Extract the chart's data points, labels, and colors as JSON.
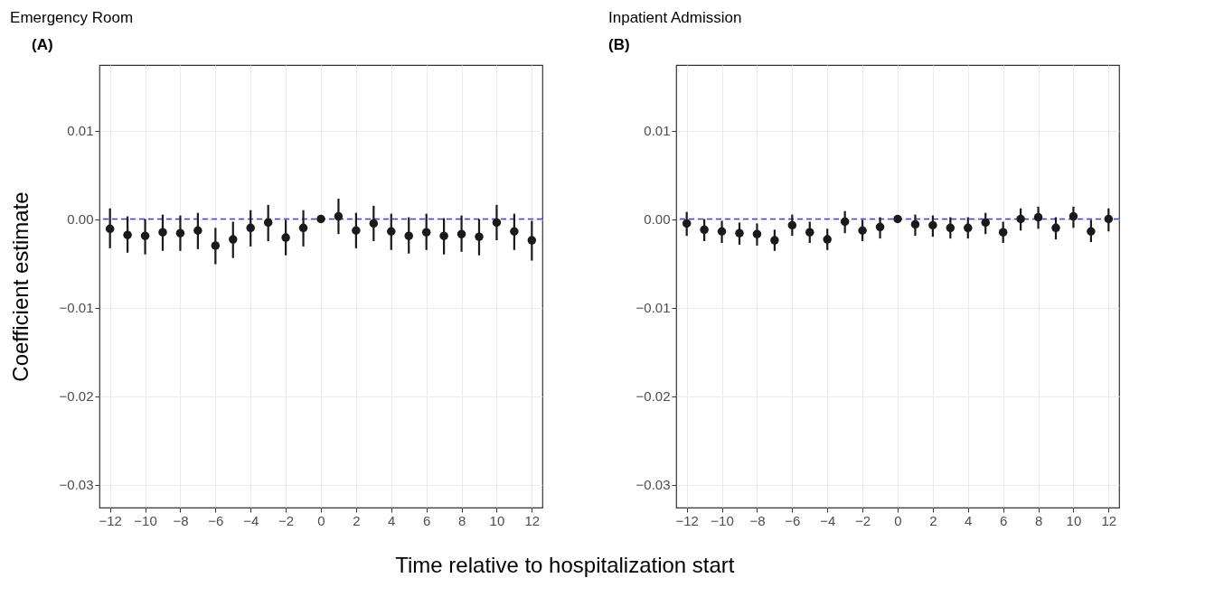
{
  "chart_data": [
    {
      "type": "scatter",
      "title": "Emergency Room",
      "ylabel": "Coefficient estimate",
      "xlabel": "Time relative to hospitalization start",
      "annotations": [
        "(A)"
      ],
      "x": [
        -12,
        -11,
        -10,
        -9,
        -8,
        -7,
        -6,
        -5,
        -4,
        -3,
        -2,
        -1,
        0,
        1,
        2,
        3,
        4,
        5,
        6,
        7,
        8,
        9,
        10,
        11,
        12
      ],
      "series": [
        {
          "color": "#1a1a1a",
          "values": [
            -0.0011,
            -0.0018,
            -0.0019,
            -0.0015,
            -0.0016,
            -0.0013,
            -0.003,
            -0.0023,
            -0.001,
            -0.0004,
            -0.0021,
            -0.001,
            0.0,
            0.0003,
            -0.0013,
            -0.0005,
            -0.0014,
            -0.0019,
            -0.0015,
            -0.0019,
            -0.0017,
            -0.002,
            -0.0004,
            -0.0014,
            -0.0024
          ],
          "errors": [
            [
              -0.0033,
              0.0012
            ],
            [
              -0.0038,
              0.0003
            ],
            [
              -0.004,
              0.0
            ],
            [
              -0.0036,
              0.0005
            ],
            [
              -0.0036,
              0.0004
            ],
            [
              -0.0034,
              0.0007
            ],
            [
              -0.0051,
              -0.001
            ],
            [
              -0.0044,
              -0.0003
            ],
            [
              -0.0031,
              0.001
            ],
            [
              -0.0025,
              0.0016
            ],
            [
              -0.0041,
              -0.0001
            ],
            [
              -0.0031,
              0.001
            ],
            null,
            [
              -0.0017,
              0.0023
            ],
            [
              -0.0033,
              0.0007
            ],
            [
              -0.0025,
              0.0015
            ],
            [
              -0.0035,
              0.0006
            ],
            [
              -0.0039,
              0.0002
            ],
            [
              -0.0035,
              0.0006
            ],
            [
              -0.004,
              0.0001
            ],
            [
              -0.0037,
              0.0004
            ],
            [
              -0.0041,
              0.0
            ],
            [
              -0.0024,
              0.0016
            ],
            [
              -0.0035,
              0.0006
            ],
            [
              -0.0047,
              -0.0002
            ]
          ]
        }
      ],
      "xlim": [
        -12.6,
        12.6
      ],
      "xticks": [
        -12,
        -10,
        -8,
        -6,
        -4,
        -2,
        0,
        2,
        4,
        6,
        8,
        10,
        12
      ],
      "ylim": [
        -0.0326,
        0.0174
      ],
      "yticks": [
        {
          "value": 0.01,
          "label": "0.01"
        },
        {
          "value": 0.0,
          "label": "0.00"
        },
        {
          "value": -0.01,
          "label": "−0.01"
        },
        {
          "value": -0.02,
          "label": "−0.02"
        },
        {
          "value": -0.03,
          "label": "−0.03"
        }
      ],
      "ref_lines": [
        {
          "axis": "y",
          "value": 0,
          "color": "#3f4ab0",
          "line_style": "dashed"
        }
      ],
      "grid": true,
      "marker": "circle"
    },
    {
      "type": "scatter",
      "title": "Inpatient Admission",
      "annotations": [
        "(B)"
      ],
      "x": [
        -12,
        -11,
        -10,
        -9,
        -8,
        -7,
        -6,
        -5,
        -4,
        -3,
        -2,
        -1,
        0,
        1,
        2,
        3,
        4,
        5,
        6,
        7,
        8,
        9,
        10,
        11,
        12
      ],
      "series": [
        {
          "color": "#1a1a1a",
          "values": [
            -0.0005,
            -0.0012,
            -0.0014,
            -0.0016,
            -0.0017,
            -0.0024,
            -0.0007,
            -0.0015,
            -0.0023,
            -0.0003,
            -0.0013,
            -0.0009,
            0.0,
            -0.0006,
            -0.0007,
            -0.001,
            -0.001,
            -0.0004,
            -0.0015,
            0.0,
            0.0002,
            -0.001,
            0.0003,
            -0.0014,
            0.0
          ],
          "errors": [
            [
              -0.0019,
              0.0008
            ],
            [
              -0.0025,
              0.0
            ],
            [
              -0.0027,
              -0.0002
            ],
            [
              -0.0029,
              -0.0004
            ],
            [
              -0.003,
              -0.0005
            ],
            [
              -0.0036,
              -0.0012
            ],
            [
              -0.0019,
              0.0005
            ],
            [
              -0.0027,
              -0.0003
            ],
            [
              -0.0035,
              -0.0011
            ],
            [
              -0.0016,
              0.0009
            ],
            [
              -0.0025,
              -0.0001
            ],
            [
              -0.0022,
              0.0002
            ],
            null,
            [
              -0.0019,
              0.0005
            ],
            [
              -0.002,
              0.0004
            ],
            [
              -0.0022,
              0.0002
            ],
            [
              -0.0022,
              0.0002
            ],
            [
              -0.0017,
              0.0007
            ],
            [
              -0.0027,
              -0.0003
            ],
            [
              -0.0013,
              0.0012
            ],
            [
              -0.0011,
              0.0014
            ],
            [
              -0.0023,
              0.0002
            ],
            [
              -0.001,
              0.0014
            ],
            [
              -0.0026,
              -0.0001
            ],
            [
              -0.0014,
              0.0012
            ]
          ]
        }
      ],
      "xlim": [
        -12.6,
        12.6
      ],
      "xticks": [
        -12,
        -10,
        -8,
        -6,
        -4,
        -2,
        0,
        2,
        4,
        6,
        8,
        10,
        12
      ],
      "ylim": [
        -0.0326,
        0.0174
      ],
      "yticks": [
        {
          "value": 0.01,
          "label": "0.01"
        },
        {
          "value": 0.0,
          "label": "0.00"
        },
        {
          "value": -0.01,
          "label": "−0.01"
        },
        {
          "value": -0.02,
          "label": "−0.02"
        },
        {
          "value": -0.03,
          "label": "−0.03"
        }
      ],
      "ref_lines": [
        {
          "axis": "y",
          "value": 0,
          "color": "#3f4ab0",
          "line_style": "dashed"
        }
      ],
      "grid": true,
      "marker": "circle"
    }
  ]
}
